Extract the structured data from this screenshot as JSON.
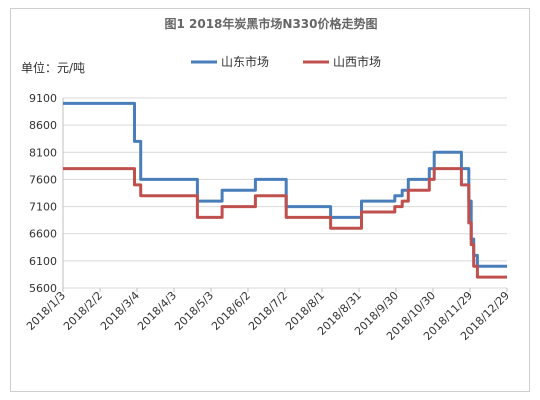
{
  "chart_data": {
    "type": "line",
    "title": "图1 2018年炭黑市场N330价格走势图",
    "unit_label": "单位：元/吨",
    "ylim": [
      5600,
      9100
    ],
    "yticks": [
      9100,
      8600,
      8100,
      7600,
      7100,
      6600,
      6100,
      5600
    ],
    "xlim": [
      "2018-01-03",
      "2018-12-29"
    ],
    "x_tick_labels": [
      "2018/1/3",
      "2018/2/2",
      "2018/3/4",
      "2018/4/3",
      "2018/5/3",
      "2018/6/2",
      "2018/7/2",
      "2018/8/1",
      "2018/8/31",
      "2018/9/30",
      "2018/10/30",
      "2018/11/29",
      "2018/12/29"
    ],
    "legend": "top",
    "grid": "horizontal",
    "series": [
      {
        "name": "山东市场",
        "color": "#4a7ebb",
        "points": [
          [
            "2018-01-03",
            9000
          ],
          [
            "2018-03-02",
            9000
          ],
          [
            "2018-03-02",
            8300
          ],
          [
            "2018-03-07",
            8300
          ],
          [
            "2018-03-07",
            7600
          ],
          [
            "2018-04-22",
            7600
          ],
          [
            "2018-04-22",
            7200
          ],
          [
            "2018-05-12",
            7200
          ],
          [
            "2018-05-12",
            7400
          ],
          [
            "2018-06-08",
            7400
          ],
          [
            "2018-06-08",
            7600
          ],
          [
            "2018-07-03",
            7600
          ],
          [
            "2018-07-03",
            7100
          ],
          [
            "2018-08-08",
            7100
          ],
          [
            "2018-08-08",
            6900
          ],
          [
            "2018-09-02",
            6900
          ],
          [
            "2018-09-02",
            7200
          ],
          [
            "2018-09-29",
            7200
          ],
          [
            "2018-09-29",
            7300
          ],
          [
            "2018-10-05",
            7300
          ],
          [
            "2018-10-05",
            7400
          ],
          [
            "2018-10-10",
            7400
          ],
          [
            "2018-10-10",
            7600
          ],
          [
            "2018-10-27",
            7600
          ],
          [
            "2018-10-27",
            7800
          ],
          [
            "2018-10-31",
            7800
          ],
          [
            "2018-10-31",
            8100
          ],
          [
            "2018-11-22",
            8100
          ],
          [
            "2018-11-22",
            7800
          ],
          [
            "2018-11-28",
            7800
          ],
          [
            "2018-11-28",
            7200
          ],
          [
            "2018-11-30",
            7200
          ],
          [
            "2018-11-30",
            6500
          ],
          [
            "2018-12-02",
            6500
          ],
          [
            "2018-12-02",
            6200
          ],
          [
            "2018-12-05",
            6200
          ],
          [
            "2018-12-05",
            6000
          ],
          [
            "2018-12-29",
            6000
          ]
        ]
      },
      {
        "name": "山西市场",
        "color": "#c0504d",
        "points": [
          [
            "2018-01-03",
            7800
          ],
          [
            "2018-03-02",
            7800
          ],
          [
            "2018-03-02",
            7500
          ],
          [
            "2018-03-07",
            7500
          ],
          [
            "2018-03-07",
            7300
          ],
          [
            "2018-04-22",
            7300
          ],
          [
            "2018-04-22",
            6900
          ],
          [
            "2018-05-12",
            6900
          ],
          [
            "2018-05-12",
            7100
          ],
          [
            "2018-06-08",
            7100
          ],
          [
            "2018-06-08",
            7300
          ],
          [
            "2018-07-03",
            7300
          ],
          [
            "2018-07-03",
            6900
          ],
          [
            "2018-08-08",
            6900
          ],
          [
            "2018-08-08",
            6700
          ],
          [
            "2018-09-02",
            6700
          ],
          [
            "2018-09-02",
            7000
          ],
          [
            "2018-09-29",
            7000
          ],
          [
            "2018-09-29",
            7100
          ],
          [
            "2018-10-05",
            7100
          ],
          [
            "2018-10-05",
            7200
          ],
          [
            "2018-10-10",
            7200
          ],
          [
            "2018-10-10",
            7400
          ],
          [
            "2018-10-27",
            7400
          ],
          [
            "2018-10-27",
            7600
          ],
          [
            "2018-10-31",
            7600
          ],
          [
            "2018-10-31",
            7800
          ],
          [
            "2018-11-22",
            7800
          ],
          [
            "2018-11-22",
            7500
          ],
          [
            "2018-11-28",
            7500
          ],
          [
            "2018-11-28",
            6800
          ],
          [
            "2018-11-30",
            6800
          ],
          [
            "2018-11-30",
            6400
          ],
          [
            "2018-12-02",
            6400
          ],
          [
            "2018-12-02",
            6000
          ],
          [
            "2018-12-05",
            6000
          ],
          [
            "2018-12-05",
            5800
          ],
          [
            "2018-12-29",
            5800
          ]
        ]
      }
    ]
  }
}
